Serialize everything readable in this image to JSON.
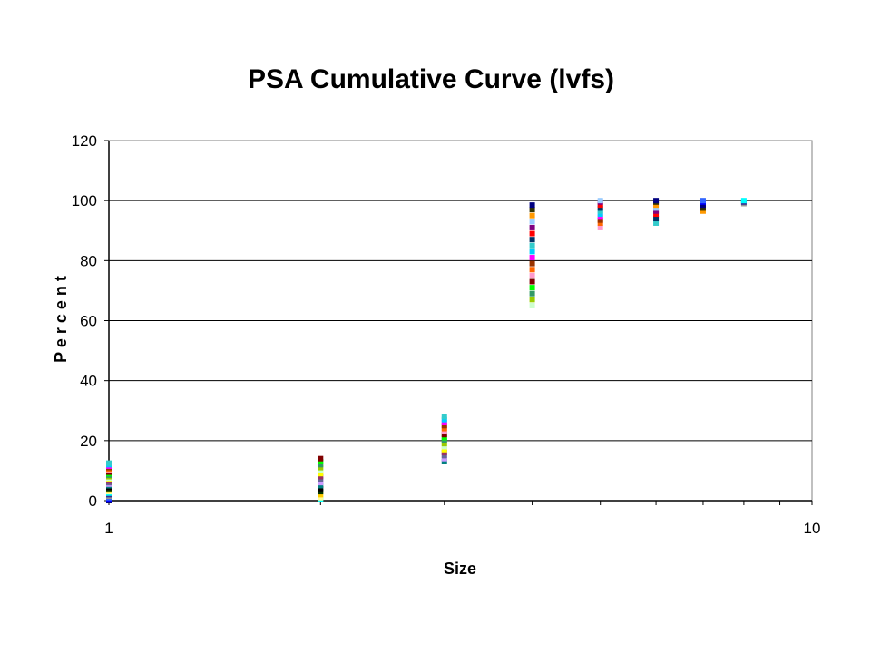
{
  "chart_data": {
    "type": "scatter",
    "title": "PSA Cumulative Curve (lvfs)",
    "xlabel": "Size",
    "ylabel": "P e r c e n t",
    "x_scale": "log",
    "xlim": [
      1,
      10
    ],
    "ylim": [
      0,
      120
    ],
    "y_ticks": [
      "0",
      "20",
      "40",
      "60",
      "80",
      "100",
      "120"
    ],
    "x_ticks": [
      "1",
      "10"
    ],
    "grid": "horizontal",
    "legend": "none",
    "colors": [
      "#000080",
      "#ff00ff",
      "#ffff00",
      "#00ffff",
      "#800080",
      "#800000",
      "#008080",
      "#0000ff",
      "#00ccff",
      "#ccffcc",
      "#ffff99",
      "#99ccff",
      "#ff99cc",
      "#cc99ff",
      "#3366ff",
      "#33cccc",
      "#99cc00",
      "#ffcc00",
      "#ff9900",
      "#ff6600",
      "#666699",
      "#969696",
      "#003366",
      "#339966",
      "#003300",
      "#333300",
      "#993300",
      "#993366",
      "#333399",
      "#ff0000",
      "#00ff00",
      "#000000"
    ],
    "groups": [
      {
        "x": 1.0,
        "values": [
          0,
          0.5,
          1,
          1.5,
          2,
          2.5,
          3,
          3.5,
          4,
          4.5,
          5,
          5.5,
          6,
          6.5,
          7,
          7.5,
          8,
          8.5,
          9,
          9.5,
          10,
          10.5,
          11,
          11.5,
          12,
          12.5
        ]
      },
      {
        "x": 2.0,
        "values": [
          0.5,
          1,
          2,
          3,
          4,
          5,
          6,
          7,
          8,
          9,
          10,
          11,
          12,
          13,
          14
        ]
      },
      {
        "x": 3.0,
        "values": [
          13,
          14,
          15,
          16,
          17,
          18,
          19,
          20,
          21,
          22,
          23,
          24,
          25,
          26,
          27,
          28
        ]
      },
      {
        "x": 4.0,
        "values": [
          65,
          67,
          69,
          71,
          73,
          75,
          77,
          79,
          81,
          83,
          85,
          87,
          89,
          91,
          93,
          95,
          97,
          98.5
        ]
      },
      {
        "x": 5.0,
        "values": [
          91,
          92.5,
          93.5,
          94.5,
          95.5,
          96.5,
          97.5,
          98.5,
          99.5,
          100
        ]
      },
      {
        "x": 6.0,
        "values": [
          92.5,
          94,
          95.5,
          96.5,
          97.5,
          98.5,
          99.5,
          100
        ]
      },
      {
        "x": 7.0,
        "values": [
          96.5,
          97.5,
          98.5,
          99.5,
          100
        ]
      },
      {
        "x": 8.0,
        "values": [
          99,
          99.5,
          100
        ]
      }
    ]
  }
}
